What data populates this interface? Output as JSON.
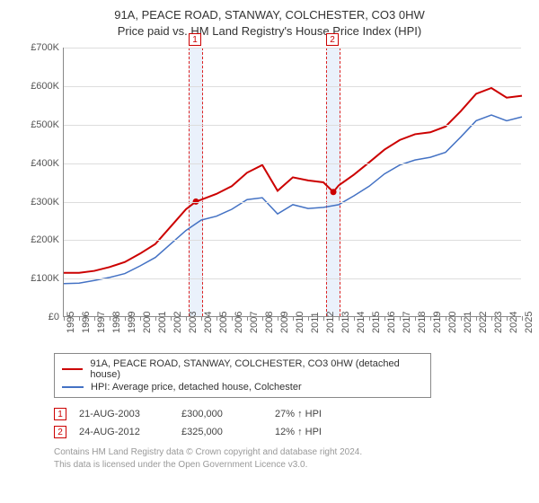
{
  "title_line1": "91A, PEACE ROAD, STANWAY, COLCHESTER, CO3 0HW",
  "title_line2": "Price paid vs. HM Land Registry's House Price Index (HPI)",
  "chart": {
    "type": "line",
    "background_color": "#ffffff",
    "grid_color": "#dddddd",
    "axis_color": "#888888",
    "ylim": [
      0,
      700
    ],
    "ytick_step": 100,
    "y_prefix": "£",
    "y_suffix": "K",
    "xlim": [
      1995,
      2025
    ],
    "xticks": [
      1995,
      1996,
      1997,
      1998,
      1999,
      2000,
      2001,
      2002,
      2003,
      2004,
      2005,
      2006,
      2007,
      2008,
      2009,
      2010,
      2011,
      2012,
      2013,
      2014,
      2015,
      2016,
      2017,
      2018,
      2019,
      2020,
      2021,
      2022,
      2023,
      2024,
      2025
    ],
    "band_color": "#eaf1fb",
    "band_border_color": "#d22",
    "bands": [
      {
        "label": "1",
        "x_center": 2003.65,
        "width_years": 0.9
      },
      {
        "label": "2",
        "x_center": 2012.65,
        "width_years": 0.9
      }
    ],
    "series": [
      {
        "id": "price_paid",
        "legend": "91A, PEACE ROAD, STANWAY, COLCHESTER, CO3 0HW (detached house)",
        "color": "#cc0000",
        "line_width": 2,
        "points": [
          [
            1995,
            115
          ],
          [
            1996,
            115
          ],
          [
            1997,
            120
          ],
          [
            1998,
            130
          ],
          [
            1999,
            143
          ],
          [
            2000,
            165
          ],
          [
            2001,
            190
          ],
          [
            2002,
            235
          ],
          [
            2003,
            280
          ],
          [
            2003.65,
            300
          ],
          [
            2004,
            305
          ],
          [
            2005,
            320
          ],
          [
            2006,
            340
          ],
          [
            2007,
            375
          ],
          [
            2008,
            395
          ],
          [
            2009,
            328
          ],
          [
            2010,
            363
          ],
          [
            2011,
            355
          ],
          [
            2012,
            350
          ],
          [
            2012.65,
            325
          ],
          [
            2013,
            342
          ],
          [
            2014,
            370
          ],
          [
            2015,
            402
          ],
          [
            2016,
            435
          ],
          [
            2017,
            460
          ],
          [
            2018,
            475
          ],
          [
            2019,
            480
          ],
          [
            2020,
            495
          ],
          [
            2021,
            535
          ],
          [
            2022,
            580
          ],
          [
            2023,
            595
          ],
          [
            2024,
            570
          ],
          [
            2025,
            575
          ]
        ],
        "markers": [
          {
            "x": 2003.65,
            "y": 300,
            "color": "#cc0000"
          },
          {
            "x": 2012.65,
            "y": 325,
            "color": "#cc0000"
          }
        ]
      },
      {
        "id": "hpi",
        "legend": "HPI: Average price, detached house, Colchester",
        "color": "#4472c4",
        "line_width": 1.5,
        "points": [
          [
            1995,
            87
          ],
          [
            1996,
            88
          ],
          [
            1997,
            95
          ],
          [
            1998,
            103
          ],
          [
            1999,
            113
          ],
          [
            2000,
            133
          ],
          [
            2001,
            155
          ],
          [
            2002,
            190
          ],
          [
            2003,
            225
          ],
          [
            2004,
            252
          ],
          [
            2005,
            262
          ],
          [
            2006,
            280
          ],
          [
            2007,
            305
          ],
          [
            2008,
            310
          ],
          [
            2009,
            268
          ],
          [
            2010,
            292
          ],
          [
            2011,
            282
          ],
          [
            2012,
            285
          ],
          [
            2013,
            292
          ],
          [
            2014,
            315
          ],
          [
            2015,
            340
          ],
          [
            2016,
            372
          ],
          [
            2017,
            395
          ],
          [
            2018,
            408
          ],
          [
            2019,
            415
          ],
          [
            2020,
            428
          ],
          [
            2021,
            468
          ],
          [
            2022,
            510
          ],
          [
            2023,
            525
          ],
          [
            2024,
            510
          ],
          [
            2025,
            520
          ]
        ]
      }
    ]
  },
  "legend_font_size": 11,
  "sales": [
    {
      "n": "1",
      "date": "21-AUG-2003",
      "price": "£300,000",
      "delta": "27% ↑ HPI"
    },
    {
      "n": "2",
      "date": "24-AUG-2012",
      "price": "£325,000",
      "delta": "12% ↑ HPI"
    }
  ],
  "attribution_line1": "Contains HM Land Registry data © Crown copyright and database right 2024.",
  "attribution_line2": "This data is licensed under the Open Government Licence v3.0."
}
